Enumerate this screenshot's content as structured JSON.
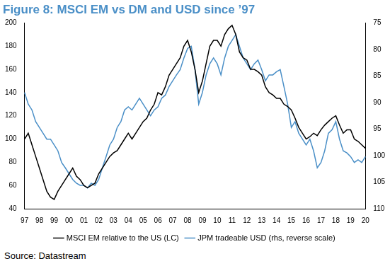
{
  "chart_data": {
    "type": "line",
    "title": "Figure 8: MSCI EM vs DM and USD since ’97",
    "source": "Source: Datastream",
    "categories": [
      "97",
      null,
      null,
      null,
      "98",
      null,
      null,
      null,
      "99",
      null,
      null,
      null,
      "00",
      null,
      null,
      null,
      "01",
      null,
      null,
      null,
      "02",
      null,
      null,
      null,
      "03",
      null,
      null,
      null,
      "04",
      null,
      null,
      null,
      "05",
      null,
      null,
      null,
      "06",
      null,
      null,
      null,
      "07",
      null,
      null,
      null,
      "08",
      null,
      null,
      null,
      "09",
      null,
      null,
      null,
      "10",
      null,
      null,
      null,
      "11",
      null,
      null,
      null,
      "12",
      null,
      null,
      null,
      "13",
      null,
      null,
      null,
      "14",
      null,
      null,
      null,
      "15",
      null,
      null,
      null,
      "16",
      null,
      null,
      null,
      "17",
      null,
      null,
      null,
      "18",
      null,
      null,
      null,
      "19",
      null,
      null,
      null,
      "20"
    ],
    "series": [
      {
        "name": "MSCI EM relative to the US (LC)",
        "color": "#000000",
        "values": [
          100,
          105,
          95,
          85,
          75,
          65,
          55,
          50,
          48,
          55,
          60,
          65,
          70,
          75,
          68,
          65,
          60,
          58,
          60,
          62,
          70,
          75,
          80,
          85,
          88,
          90,
          95,
          100,
          105,
          100,
          105,
          110,
          115,
          118,
          125,
          130,
          140,
          138,
          145,
          155,
          160,
          165,
          170,
          180,
          185,
          175,
          160,
          140,
          150,
          165,
          180,
          185,
          185,
          180,
          190,
          195,
          198,
          190,
          175,
          170,
          168,
          160,
          160,
          158,
          155,
          145,
          140,
          138,
          135,
          135,
          130,
          128,
          125,
          118,
          110,
          105,
          100,
          102,
          105,
          103,
          108,
          112,
          115,
          118,
          120,
          112,
          105,
          108,
          108,
          100,
          98,
          95,
          92
        ]
      },
      {
        "name": "JPM tradeable USD (rhs, reverse scale)",
        "color": "#4a8fc7",
        "axis": "y2",
        "values": [
          88.1,
          90.3,
          91.4,
          93.6,
          94.7,
          95.8,
          96.9,
          96.9,
          98.0,
          99.1,
          101.3,
          102.3,
          103.4,
          104.5,
          105.2,
          105.6,
          105.6,
          106.1,
          105.2,
          105.6,
          104.5,
          102.3,
          100.2,
          98.0,
          96.9,
          94.7,
          93.6,
          91.4,
          90.8,
          91.4,
          90.3,
          89.2,
          90.3,
          91.4,
          92.5,
          91.4,
          90.8,
          89.2,
          88.6,
          87.0,
          85.9,
          84.8,
          83.8,
          81.6,
          79.8,
          79.4,
          83.8,
          90.3,
          88.1,
          84.8,
          82.7,
          81.6,
          82.7,
          84.8,
          81.6,
          79.4,
          78.3,
          77.2,
          79.4,
          81.6,
          82.7,
          83.8,
          82.7,
          82.0,
          83.8,
          85.9,
          84.8,
          84.8,
          84.2,
          83.8,
          87.0,
          90.3,
          94.7,
          93.6,
          95.8,
          96.9,
          98.0,
          96.9,
          99.1,
          102.3,
          101.3,
          99.1,
          95.8,
          95.1,
          93.6,
          96.9,
          99.1,
          99.5,
          100.2,
          101.3,
          100.8,
          101.3,
          100.2
        ]
      }
    ],
    "ylim": [
      40,
      200
    ],
    "yticks": [
      40,
      60,
      80,
      100,
      120,
      140,
      160,
      180,
      200
    ],
    "y2lim": [
      110,
      75
    ],
    "y2ticks": [
      75,
      80,
      85,
      90,
      95,
      100,
      105,
      110
    ],
    "grid": false,
    "legend": "bottom"
  }
}
